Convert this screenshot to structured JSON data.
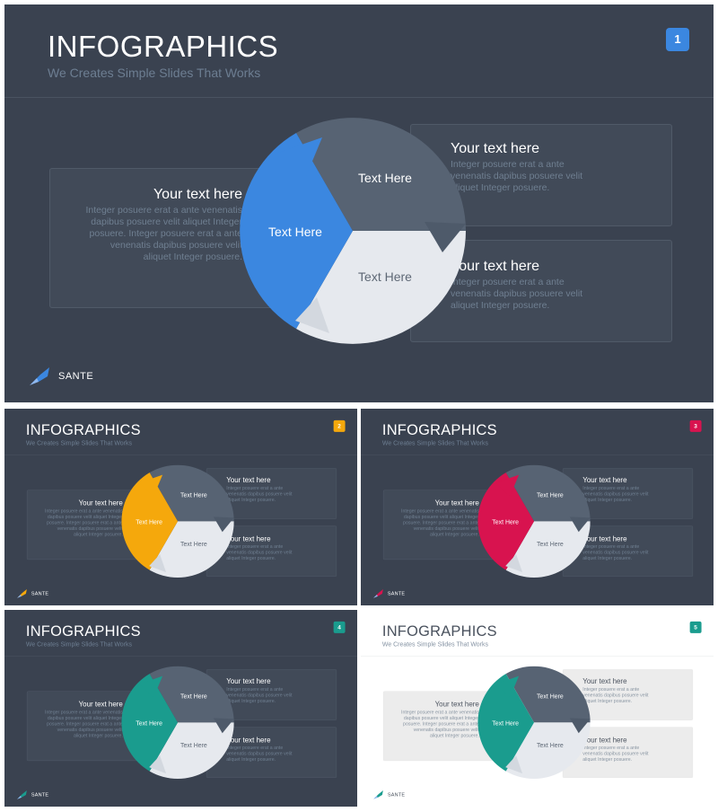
{
  "slides": [
    {
      "title": "INFOGRAPHICS",
      "subtitle": "We Creates Simple Slides That Works",
      "number": "1",
      "accent": "#3b87e0",
      "theme": "dark",
      "left_box": {
        "heading": "Your text here",
        "body": "Integer posuere erat a ante venenatis dapibus posuere velit aliquet Integer posuere. Integer posuere erat a ante venenatis dapibus posuere velit aliquet Integer posuere."
      },
      "top_right_box": {
        "heading": "Your text here",
        "body": "Integer posuere erat a ante venenatis dapibus posuere velit aliquet Integer posuere."
      },
      "bottom_right_box": {
        "heading": "Your text here",
        "body": "Integer posuere erat a ante venenatis dapibus posuere velit aliquet Integer posuere."
      },
      "wheel": {
        "left_label": "Text Here",
        "top_label": "Text Here",
        "bottom_label": "Text Here"
      },
      "logo": "SANTE"
    },
    {
      "title": "INFOGRAPHICS",
      "subtitle": "We Creates Simple Slides That Works",
      "number": "2",
      "accent": "#f5a80c",
      "theme": "dark",
      "left_box": {
        "heading": "Your text here",
        "body": "Integer posuere erat a ante venenatis dapibus posuere velit aliquet Integer posuere. Integer posuere erat a ante venenatis dapibus posuere velit aliquet Integer posuere."
      },
      "top_right_box": {
        "heading": "Your text here",
        "body": "Integer posuere erat a ante venenatis dapibus posuere velit aliquet Integer posuere."
      },
      "bottom_right_box": {
        "heading": "Your text here",
        "body": "Integer posuere erat a ante venenatis dapibus posuere velit aliquet Integer posuere."
      },
      "wheel": {
        "left_label": "Text Here",
        "top_label": "Text Here",
        "bottom_label": "Text Here"
      },
      "logo": "SANTE"
    },
    {
      "title": "INFOGRAPHICS",
      "subtitle": "We Creates Simple Slides That Works",
      "number": "3",
      "accent": "#d8134f",
      "theme": "dark",
      "left_box": {
        "heading": "Your text here",
        "body": "Integer posuere erat a ante venenatis dapibus posuere velit aliquet Integer posuere. Integer posuere erat a ante venenatis dapibus posuere velit aliquet Integer posuere."
      },
      "top_right_box": {
        "heading": "Your text here",
        "body": "Integer posuere erat a ante venenatis dapibus posuere velit aliquet Integer posuere."
      },
      "bottom_right_box": {
        "heading": "Your text here",
        "body": "Integer posuere erat a ante venenatis dapibus posuere velit aliquet Integer posuere."
      },
      "wheel": {
        "left_label": "Text Here",
        "top_label": "Text Here",
        "bottom_label": "Text Here"
      },
      "logo": "SANTE"
    },
    {
      "title": "INFOGRAPHICS",
      "subtitle": "We Creates Simple Slides That Works",
      "number": "4",
      "accent": "#1a9c8e",
      "theme": "dark",
      "left_box": {
        "heading": "Your text here",
        "body": "Integer posuere erat a ante venenatis dapibus posuere velit aliquet Integer posuere. Integer posuere erat a ante venenatis dapibus posuere velit aliquet Integer posuere."
      },
      "top_right_box": {
        "heading": "Your text here",
        "body": "Integer posuere erat a ante venenatis dapibus posuere velit aliquet Integer posuere."
      },
      "bottom_right_box": {
        "heading": "Your text here",
        "body": "Integer posuere erat a ante venenatis dapibus posuere velit aliquet Integer posuere."
      },
      "wheel": {
        "left_label": "Text Here",
        "top_label": "Text Here",
        "bottom_label": "Text Here"
      },
      "logo": "SANTE"
    },
    {
      "title": "INFOGRAPHICS",
      "subtitle": "We Creates Simple Slides That Works",
      "number": "5",
      "accent": "#1a9c8e",
      "theme": "light",
      "left_box": {
        "heading": "Your text here",
        "body": "Integer posuere erat a ante venenatis dapibus posuere velit aliquet Integer posuere. Integer posuere erat a ante venenatis dapibus posuere velit aliquet Integer posuere."
      },
      "top_right_box": {
        "heading": "Your text here",
        "body": "Integer posuere erat a ante venenatis dapibus posuere velit aliquet Integer posuere."
      },
      "bottom_right_box": {
        "heading": "Your text here",
        "body": "Integer posuere erat a ante venenatis dapibus posuere velit aliquet Integer posuere."
      },
      "wheel": {
        "left_label": "Text Here",
        "top_label": "Text Here",
        "bottom_label": "Text Here"
      },
      "logo": "SANTE"
    }
  ]
}
